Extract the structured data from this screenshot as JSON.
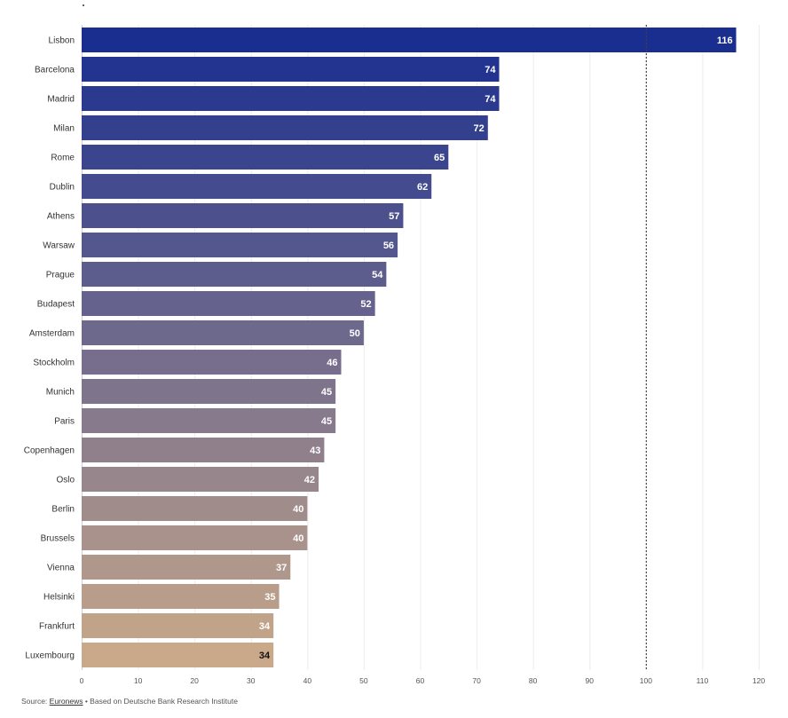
{
  "chart_data": {
    "type": "bar",
    "orientation": "horizontal",
    "categories": [
      "Lisbon",
      "Barcelona",
      "Madrid",
      "Milan",
      "Rome",
      "Dublin",
      "Athens",
      "Warsaw",
      "Prague",
      "Budapest",
      "Amsterdam",
      "Stockholm",
      "Munich",
      "Paris",
      "Copenhagen",
      "Oslo",
      "Berlin",
      "Brussels",
      "Vienna",
      "Helsinki",
      "Frankfurt",
      "Luxembourg"
    ],
    "values": [
      116,
      74,
      74,
      72,
      65,
      62,
      57,
      56,
      54,
      52,
      50,
      46,
      45,
      45,
      43,
      42,
      40,
      40,
      37,
      35,
      34,
      34
    ],
    "xlim": [
      0,
      120
    ],
    "xticks": [
      0,
      10,
      20,
      30,
      40,
      50,
      60,
      70,
      80,
      90,
      100,
      110,
      120
    ],
    "reference_line": 100,
    "grid": true,
    "data_labels": true,
    "color_start": "#1a2e8f",
    "color_end": "#c9a98a",
    "label_color_light": "#ffffff",
    "label_color_dark": "#111111"
  },
  "source": {
    "prefix": "Source: ",
    "link": "Euronews",
    "suffix": " • Based on Deutsche Bank Research Institute"
  }
}
